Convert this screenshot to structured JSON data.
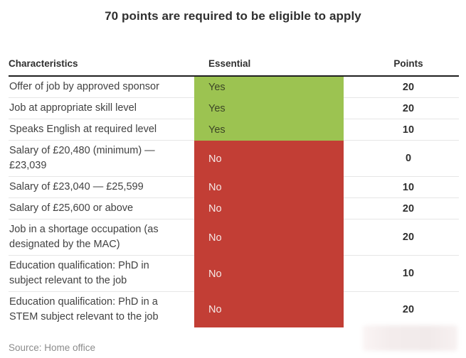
{
  "title": "70 points are required to be eligible to apply",
  "source": "Source: Home office",
  "colors": {
    "yes_bg": "#9cc351",
    "no_bg": "#c23e35",
    "yes_text": "#3c4526",
    "no_text": "#f5e9e7",
    "header_rule": "#1f1f1f",
    "row_rule": "#e6e6e6",
    "dark_text": "#2f2f2f",
    "source_text": "#8c8c8c"
  },
  "chart_data": {
    "type": "table",
    "title": "70 points are required to be eligible to apply",
    "columns": [
      "Characteristics",
      "Essential",
      "Points"
    ],
    "rows": [
      {
        "characteristic": "Offer of job by approved sponsor",
        "essential": "Yes",
        "points": "20"
      },
      {
        "characteristic": "Job at appropriate skill level",
        "essential": "Yes",
        "points": "20"
      },
      {
        "characteristic": "Speaks English at required level",
        "essential": "Yes",
        "points": "10"
      },
      {
        "characteristic": "Salary of £20,480 (minimum) — £23,039",
        "essential": "No",
        "points": "0"
      },
      {
        "characteristic": "Salary of £23,040 — £25,599",
        "essential": "No",
        "points": "10"
      },
      {
        "characteristic": "Salary of £25,600 or above",
        "essential": "No",
        "points": "20"
      },
      {
        "characteristic": "Job in a shortage occupation (as designated by the MAC)",
        "essential": "No",
        "points": "20"
      },
      {
        "characteristic": "Education qualification: PhD in subject relevant to the job",
        "essential": "No",
        "points": "10"
      },
      {
        "characteristic": "Education qualification: PhD in a STEM subject relevant to the job",
        "essential": "No",
        "points": "20"
      }
    ],
    "source": "Source: Home office",
    "legend_colors": {
      "Yes": "#9cc351",
      "No": "#c23e35"
    },
    "layout": {
      "essential_column_banded": true,
      "points_aligned": "center",
      "grid": "horizontal-rules"
    }
  }
}
